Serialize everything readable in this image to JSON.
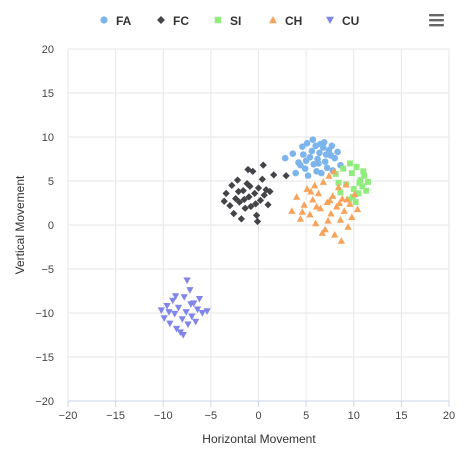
{
  "chart_data": {
    "type": "scatter",
    "xlabel": "Horizontal Movement",
    "ylabel": "Vertical Movement",
    "xlim": [
      -20,
      20
    ],
    "ylim": [
      -20,
      20
    ],
    "xticks": [
      -20,
      -15,
      -10,
      -5,
      0,
      5,
      10,
      15,
      20
    ],
    "yticks": [
      -20,
      -15,
      -10,
      -5,
      0,
      5,
      10,
      15,
      20
    ],
    "grid": true,
    "legend_position": "top-center",
    "series": [
      {
        "name": "FA",
        "color": "#7cb5ec",
        "marker": "circle",
        "values": [
          [
            2.8,
            7.6
          ],
          [
            3.6,
            8.1
          ],
          [
            4.2,
            7.1
          ],
          [
            4.6,
            8.9
          ],
          [
            4.9,
            6.4
          ],
          [
            5.1,
            9.3
          ],
          [
            5.4,
            7.7
          ],
          [
            5.6,
            8.4
          ],
          [
            5.8,
            6.9
          ],
          [
            6.0,
            9.0
          ],
          [
            6.2,
            7.5
          ],
          [
            6.4,
            8.2
          ],
          [
            6.6,
            5.9
          ],
          [
            6.8,
            8.8
          ],
          [
            7.0,
            7.2
          ],
          [
            7.2,
            6.5
          ],
          [
            7.4,
            8.5
          ],
          [
            7.6,
            7.9
          ],
          [
            7.8,
            6.2
          ],
          [
            8.0,
            7.6
          ],
          [
            8.3,
            8.3
          ],
          [
            8.6,
            6.8
          ],
          [
            5.2,
            5.6
          ],
          [
            6.1,
            6.1
          ],
          [
            4.4,
            6.8
          ],
          [
            3.9,
            5.9
          ],
          [
            5.7,
            9.7
          ],
          [
            6.9,
            9.4
          ],
          [
            7.7,
            9.0
          ],
          [
            5.0,
            7.3
          ],
          [
            6.3,
            7.0
          ],
          [
            7.1,
            8.0
          ],
          [
            4.7,
            8.0
          ],
          [
            6.5,
            9.2
          ]
        ]
      },
      {
        "name": "FC",
        "color": "#434348",
        "marker": "diamond",
        "values": [
          [
            -3.4,
            3.6
          ],
          [
            -3.0,
            2.2
          ],
          [
            -2.8,
            4.5
          ],
          [
            -2.6,
            1.3
          ],
          [
            -2.4,
            3.0
          ],
          [
            -2.2,
            5.1
          ],
          [
            -2.0,
            2.6
          ],
          [
            -1.8,
            0.7
          ],
          [
            -1.6,
            3.9
          ],
          [
            -1.4,
            1.9
          ],
          [
            -1.2,
            4.7
          ],
          [
            -1.0,
            3.2
          ],
          [
            -0.8,
            2.1
          ],
          [
            -0.6,
            6.1
          ],
          [
            -0.4,
            3.6
          ],
          [
            -0.2,
            1.1
          ],
          [
            0.0,
            4.2
          ],
          [
            0.2,
            2.8
          ],
          [
            0.4,
            5.2
          ],
          [
            0.6,
            3.4
          ],
          [
            0.8,
            4.0
          ],
          [
            1.0,
            2.3
          ],
          [
            1.2,
            3.8
          ],
          [
            1.6,
            5.7
          ],
          [
            -1.5,
            2.9
          ],
          [
            -0.9,
            4.4
          ],
          [
            -2.1,
            3.8
          ],
          [
            -0.3,
            2.4
          ],
          [
            -3.6,
            2.7
          ],
          [
            0.5,
            6.8
          ],
          [
            -0.1,
            0.4
          ],
          [
            2.9,
            5.6
          ],
          [
            -1.1,
            6.3
          ]
        ]
      },
      {
        "name": "SI",
        "color": "#90ed7d",
        "marker": "square",
        "values": [
          [
            8.1,
            5.8
          ],
          [
            8.6,
            3.7
          ],
          [
            8.9,
            6.4
          ],
          [
            9.2,
            4.6
          ],
          [
            9.5,
            2.9
          ],
          [
            9.8,
            5.9
          ],
          [
            10.0,
            4.1
          ],
          [
            10.3,
            6.6
          ],
          [
            10.5,
            3.6
          ],
          [
            10.7,
            5.1
          ],
          [
            10.9,
            4.4
          ],
          [
            11.1,
            5.6
          ],
          [
            11.3,
            3.9
          ],
          [
            9.6,
            7.0
          ],
          [
            10.2,
            2.6
          ],
          [
            11.0,
            6.1
          ],
          [
            8.4,
            4.8
          ],
          [
            9.9,
            3.2
          ],
          [
            10.6,
            4.8
          ],
          [
            11.5,
            4.9
          ]
        ]
      },
      {
        "name": "CH",
        "color": "#f7a35c",
        "marker": "triangle",
        "values": [
          [
            3.5,
            1.6
          ],
          [
            4.0,
            3.2
          ],
          [
            4.4,
            0.7
          ],
          [
            4.8,
            2.3
          ],
          [
            5.1,
            4.1
          ],
          [
            5.4,
            1.2
          ],
          [
            5.7,
            2.9
          ],
          [
            6.0,
            0.2
          ],
          [
            6.3,
            3.6
          ],
          [
            6.5,
            1.9
          ],
          [
            6.8,
            4.9
          ],
          [
            7.0,
            -0.5
          ],
          [
            7.2,
            2.6
          ],
          [
            7.4,
            5.6
          ],
          [
            7.6,
            1.3
          ],
          [
            7.8,
            3.3
          ],
          [
            8.0,
            -1.1
          ],
          [
            8.2,
            2.1
          ],
          [
            8.4,
            4.3
          ],
          [
            8.6,
            0.6
          ],
          [
            8.8,
            3.0
          ],
          [
            9.0,
            1.6
          ],
          [
            9.2,
            4.6
          ],
          [
            9.4,
            -0.2
          ],
          [
            9.6,
            2.4
          ],
          [
            9.8,
            0.9
          ],
          [
            10.1,
            3.5
          ],
          [
            10.4,
            1.8
          ],
          [
            6.1,
            2.1
          ],
          [
            7.5,
            2.8
          ],
          [
            8.5,
            2.5
          ],
          [
            5.9,
            4.5
          ],
          [
            7.9,
            6.1
          ],
          [
            6.7,
            -0.9
          ],
          [
            4.6,
            1.5
          ],
          [
            8.7,
            -1.8
          ],
          [
            9.3,
            2.9
          ],
          [
            7.3,
            0.5
          ],
          [
            5.5,
            3.8
          ]
        ]
      },
      {
        "name": "CU",
        "color": "#8085e9",
        "marker": "triangle-down",
        "values": [
          [
            -10.2,
            -9.7
          ],
          [
            -9.9,
            -10.6
          ],
          [
            -9.6,
            -9.2
          ],
          [
            -9.3,
            -11.2
          ],
          [
            -9.0,
            -8.6
          ],
          [
            -8.8,
            -10.1
          ],
          [
            -8.6,
            -11.8
          ],
          [
            -8.4,
            -9.4
          ],
          [
            -8.2,
            -12.2
          ],
          [
            -8.0,
            -10.7
          ],
          [
            -7.8,
            -8.2
          ],
          [
            -7.6,
            -9.9
          ],
          [
            -7.4,
            -11.3
          ],
          [
            -7.2,
            -7.4
          ],
          [
            -7.0,
            -10.4
          ],
          [
            -6.8,
            -8.9
          ],
          [
            -6.6,
            -11.0
          ],
          [
            -6.4,
            -9.6
          ],
          [
            -6.2,
            -8.4
          ],
          [
            -5.9,
            -10.0
          ],
          [
            -5.4,
            -9.8
          ],
          [
            -8.7,
            -8.1
          ],
          [
            -7.5,
            -6.3
          ],
          [
            -7.9,
            -12.5
          ],
          [
            -9.4,
            -9.9
          ],
          [
            -7.1,
            -9.0
          ]
        ]
      }
    ]
  }
}
